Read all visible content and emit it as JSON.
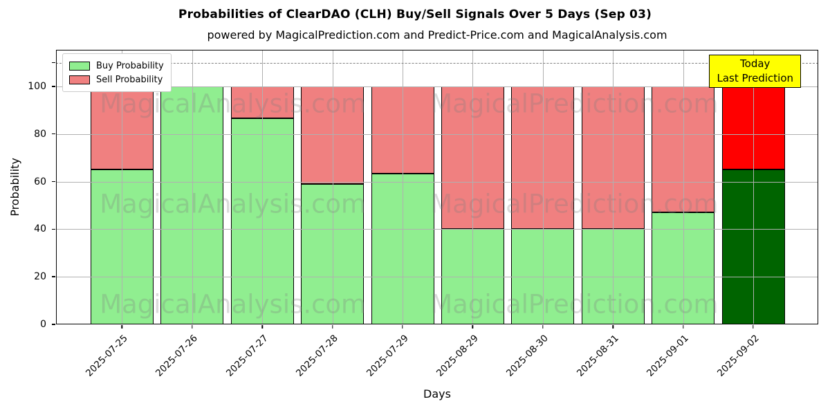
{
  "title": "Probabilities of ClearDAO (CLH) Buy/Sell Signals Over 5 Days (Sep 03)",
  "subtitle": "powered by MagicalPrediction.com and Predict-Price.com and MagicalAnalysis.com",
  "legend": [
    {
      "label": "Buy Probability",
      "color": "#90EE90"
    },
    {
      "label": "Sell Probability",
      "color": "#F08080"
    }
  ],
  "annotation": {
    "line1": "Today",
    "line2": "Last Prediction"
  },
  "watermarks": {
    "left": "MagicalAnalysis.com",
    "right": "MagicalPrediction.com"
  },
  "chart_data": {
    "type": "bar",
    "stacked": true,
    "title": "Probabilities of ClearDAO (CLH) Buy/Sell Signals Over 5 Days (Sep 03)",
    "subtitle": "powered by MagicalPrediction.com and Predict-Price.com and MagicalAnalysis.com",
    "categories": [
      "2025-07-25",
      "2025-07-26",
      "2025-07-27",
      "2025-07-28",
      "2025-07-29",
      "2025-08-29",
      "2025-08-30",
      "2025-08-31",
      "2025-09-01",
      "2025-09-02"
    ],
    "series": [
      {
        "name": "Buy Probability",
        "values": [
          65,
          100,
          86.5,
          59,
          63.5,
          40,
          40,
          40,
          47,
          65
        ]
      },
      {
        "name": "Sell Probability",
        "values": [
          35,
          0,
          13.5,
          41,
          36.5,
          60,
          60,
          60,
          53,
          35
        ]
      }
    ],
    "xlabel": "Days",
    "ylabel": "Probability",
    "ylim": [
      0,
      115.4
    ],
    "yticks": [
      0,
      20,
      40,
      60,
      80,
      100
    ],
    "extra_ytick": 110,
    "grid": true,
    "legend_position": "upper left",
    "threshold_line": {
      "y": 110,
      "style": "dashed",
      "color": "#7F7F7F"
    },
    "today_index": 9,
    "colors": {
      "buy": "#90EE90",
      "sell": "#F08080",
      "buy_today": "#006400",
      "sell_today": "#FF0000",
      "edge": "#000000",
      "grid": "#B0B0B0",
      "annotation_bg": "#FFFF00"
    }
  }
}
